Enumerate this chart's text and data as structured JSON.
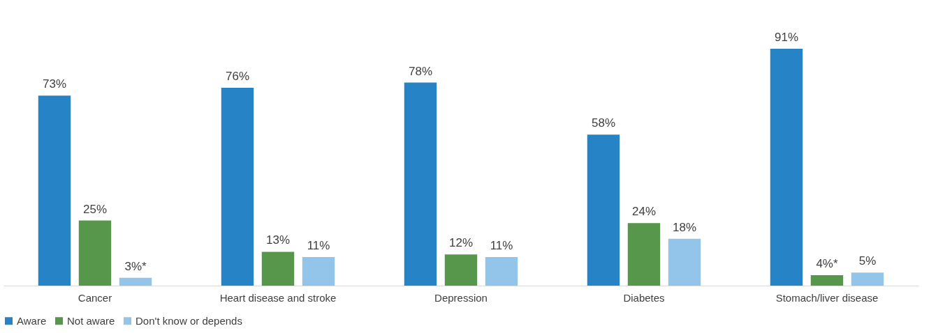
{
  "chart_data": {
    "type": "bar",
    "categories": [
      "Cancer",
      "Heart disease and stroke",
      "Depression",
      "Diabetes",
      "Stomach/liver disease"
    ],
    "series": [
      {
        "name": "Aware",
        "color": "#2683c6",
        "values": [
          73,
          76,
          78,
          58,
          91
        ],
        "value_labels": [
          "73%",
          "76%",
          "78%",
          "58%",
          "91%"
        ]
      },
      {
        "name": "Not aware",
        "color": "#56974c",
        "values": [
          25,
          13,
          12,
          24,
          4
        ],
        "value_labels": [
          "25%",
          "13%",
          "12%",
          "24%",
          "4%*"
        ]
      },
      {
        "name": "Don't know or depends",
        "color": "#93c5ea",
        "values": [
          3,
          11,
          11,
          18,
          5
        ],
        "value_labels": [
          "3%*",
          "11%",
          "11%",
          "18%",
          "5%"
        ]
      }
    ],
    "legend": "bottom",
    "grid": false
  }
}
